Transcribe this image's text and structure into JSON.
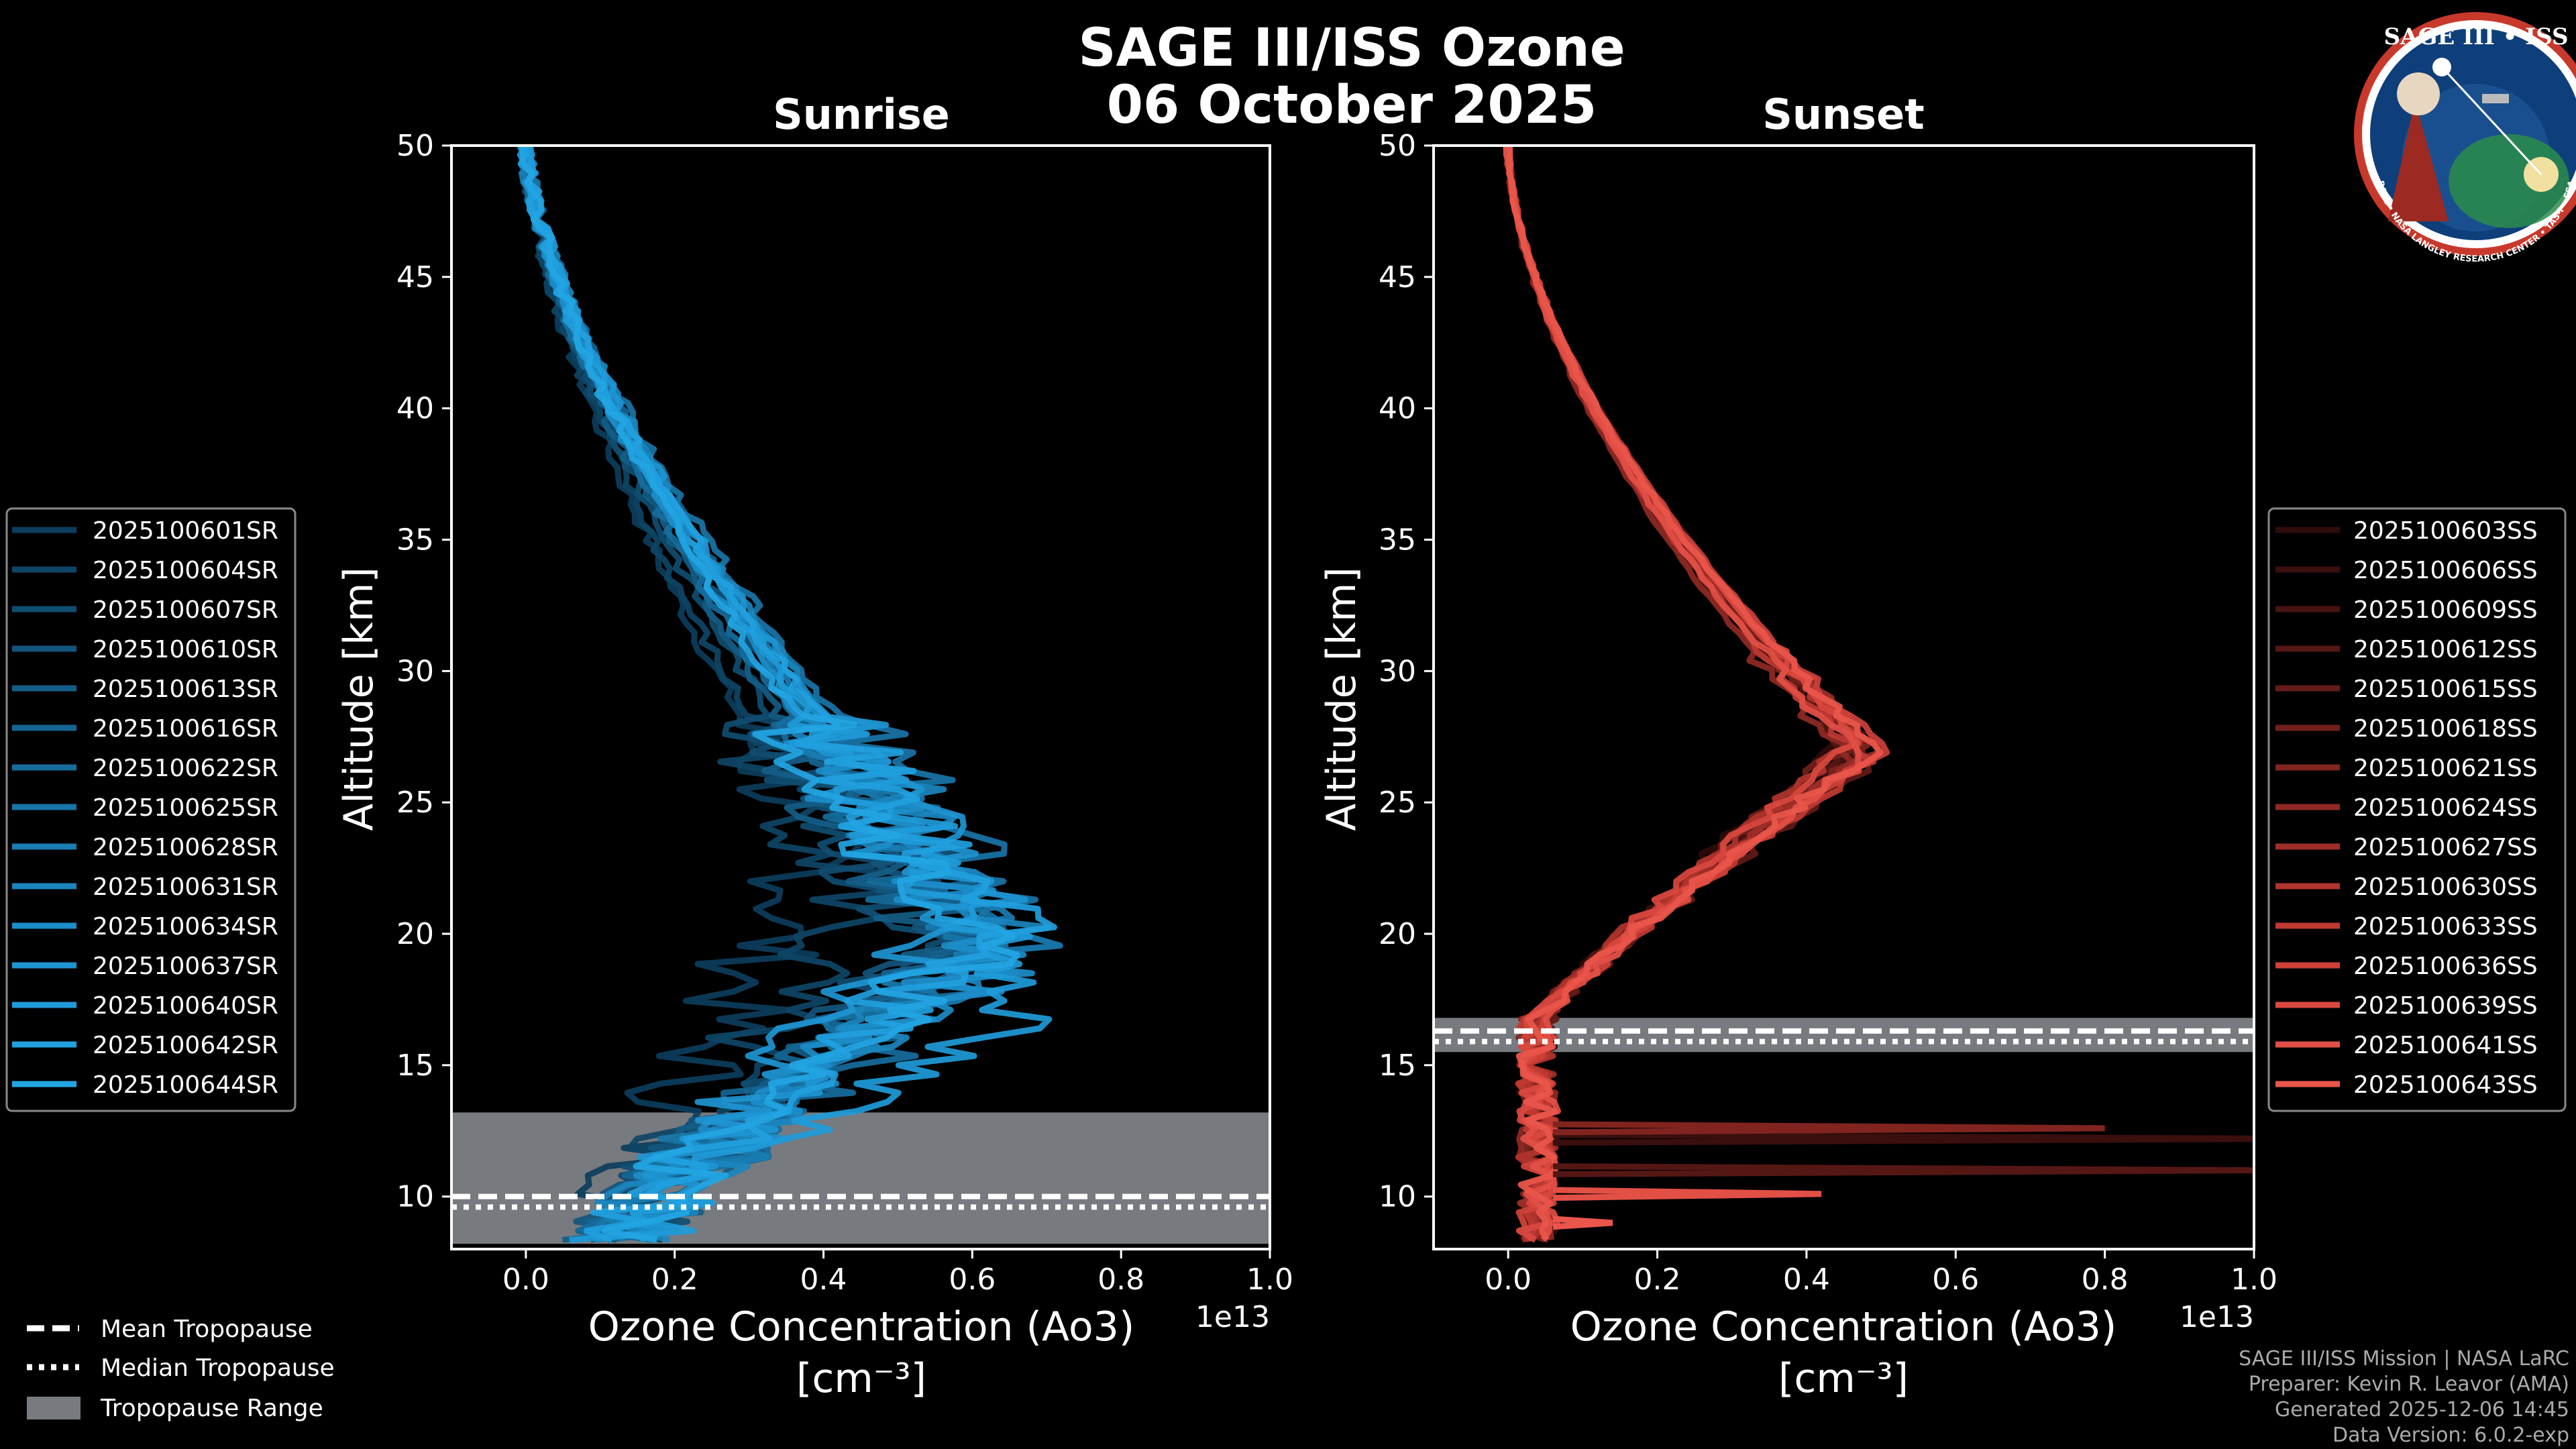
{
  "figure": {
    "title_line1": "SAGE III/ISS Ozone",
    "title_line2": "06 October 2025",
    "multiplier_label": "1e13"
  },
  "logo": {
    "text_top": "SAGE III • ISS",
    "text_bottom": "BALL • NASA LANGLEY RESEARCH CENTER • TAS-I • ESA"
  },
  "footer": {
    "line1": "SAGE III/ISS Mission | NASA LaRC",
    "line2": "Preparer: Kevin R. Leavor (AMA)",
    "line3": "Generated 2025-12-06 14:45",
    "line4": "Data Version: 6.0.2-exp"
  },
  "tropo_legend": {
    "mean": "Mean Tropopause",
    "median": "Median Tropopause",
    "range": "Tropopause Range"
  },
  "colors": {
    "background": "#000000",
    "sunrise": "#1f8fcf",
    "sunset": "#e8534a",
    "tropo_range": "#777a7e"
  },
  "chart_data": [
    {
      "type": "line",
      "title": "Sunrise",
      "xlabel": "Ozone Concentration (Ao3)",
      "xlabel_units": "[cm⁻³]",
      "ylabel": "Altitude [km]",
      "x_multiplier": "1e13",
      "xlim": [
        -0.1,
        1.0
      ],
      "ylim": [
        8,
        50
      ],
      "xticks": [
        "0.0",
        "0.2",
        "0.4",
        "0.6",
        "0.8",
        "1.0"
      ],
      "xtick_values": [
        0.0,
        0.2,
        0.4,
        0.6,
        0.8,
        1.0
      ],
      "yticks": [
        "10",
        "15",
        "20",
        "25",
        "30",
        "35",
        "40",
        "45",
        "50"
      ],
      "ytick_values": [
        10,
        15,
        20,
        25,
        30,
        35,
        40,
        45,
        50
      ],
      "tropopause": {
        "mean": 10.0,
        "median": 9.6,
        "range": [
          8.2,
          13.2
        ]
      },
      "series": [
        {
          "name": "2025100601SR",
          "color": "#0c3d5c",
          "peak_alt": 23.0,
          "peak_val": 0.4,
          "offset": 0.0
        },
        {
          "name": "2025100604SR",
          "color": "#0e4566",
          "peak_alt": 21.5,
          "peak_val": 0.45,
          "offset": 1.0
        },
        {
          "name": "2025100607SR",
          "color": "#104d71",
          "peak_alt": 19.5,
          "peak_val": 0.55,
          "offset": 2.0
        },
        {
          "name": "2025100610SR",
          "color": "#12557c",
          "peak_alt": 20.0,
          "peak_val": 0.6,
          "offset": 3.0
        },
        {
          "name": "2025100613SR",
          "color": "#135d87",
          "peak_alt": 19.0,
          "peak_val": 0.58,
          "offset": 4.0
        },
        {
          "name": "2025100616SR",
          "color": "#156592",
          "peak_alt": 20.5,
          "peak_val": 0.63,
          "offset": 5.0
        },
        {
          "name": "2025100622SR",
          "color": "#166d9d",
          "peak_alt": 18.5,
          "peak_val": 0.62,
          "offset": 6.0
        },
        {
          "name": "2025100625SR",
          "color": "#1875a8",
          "peak_alt": 21.0,
          "peak_val": 0.65,
          "offset": 7.0
        },
        {
          "name": "2025100628SR",
          "color": "#197db3",
          "peak_alt": 19.5,
          "peak_val": 0.64,
          "offset": 8.0
        },
        {
          "name": "2025100631SR",
          "color": "#1b85be",
          "peak_alt": 20.0,
          "peak_val": 0.66,
          "offset": 9.0
        },
        {
          "name": "2025100634SR",
          "color": "#1c8dc9",
          "peak_alt": 19.0,
          "peak_val": 0.63,
          "offset": 10.0
        },
        {
          "name": "2025100637SR",
          "color": "#1e95d2",
          "peak_alt": 21.0,
          "peak_val": 0.62,
          "offset": 11.0
        },
        {
          "name": "2025100640SR",
          "color": "#1f9bd9",
          "peak_alt": 17.5,
          "peak_val": 0.7,
          "offset": 12.0
        },
        {
          "name": "2025100642SR",
          "color": "#21a0de",
          "peak_alt": 20.0,
          "peak_val": 0.64,
          "offset": 13.0
        },
        {
          "name": "2025100644SR",
          "color": "#23a5e3",
          "peak_alt": 19.5,
          "peak_val": 0.61,
          "offset": 14.0
        }
      ]
    },
    {
      "type": "line",
      "title": "Sunset",
      "xlabel": "Ozone Concentration (Ao3)",
      "xlabel_units": "[cm⁻³]",
      "ylabel": "Altitude [km]",
      "x_multiplier": "1e13",
      "xlim": [
        -0.1,
        1.0
      ],
      "ylim": [
        8,
        50
      ],
      "xticks": [
        "0.0",
        "0.2",
        "0.4",
        "0.6",
        "0.8",
        "1.0"
      ],
      "xtick_values": [
        0.0,
        0.2,
        0.4,
        0.6,
        0.8,
        1.0
      ],
      "yticks": [
        "10",
        "15",
        "20",
        "25",
        "30",
        "35",
        "40",
        "45",
        "50"
      ],
      "ytick_values": [
        10,
        15,
        20,
        25,
        30,
        35,
        40,
        45,
        50
      ],
      "tropopause": {
        "mean": 16.3,
        "median": 15.9,
        "range": [
          15.5,
          16.8
        ]
      },
      "series": [
        {
          "name": "2025100603SS",
          "color": "#2e0c0b",
          "peak_alt": 27.5,
          "peak_val": 0.46,
          "offset": 0.0
        },
        {
          "name": "2025100606SS",
          "color": "#3a0f0e",
          "peak_alt": 27.0,
          "peak_val": 0.47,
          "offset": 1.0
        },
        {
          "name": "2025100609SS",
          "color": "#471311",
          "peak_alt": 27.5,
          "peak_val": 0.48,
          "offset": 2.0
        },
        {
          "name": "2025100612SS",
          "color": "#551714",
          "peak_alt": 27.0,
          "peak_val": 0.46,
          "offset": 3.0
        },
        {
          "name": "2025100615SS",
          "color": "#631b18",
          "peak_alt": 26.5,
          "peak_val": 0.49,
          "offset": 4.0
        },
        {
          "name": "2025100618SS",
          "color": "#721f1b",
          "peak_alt": 27.5,
          "peak_val": 0.47,
          "offset": 5.0
        },
        {
          "name": "2025100621SS",
          "color": "#81241f",
          "peak_alt": 27.0,
          "peak_val": 0.48,
          "offset": 6.0
        },
        {
          "name": "2025100624SS",
          "color": "#902924",
          "peak_alt": 26.5,
          "peak_val": 0.46,
          "offset": 7.0
        },
        {
          "name": "2025100627SS",
          "color": "#a02e28",
          "peak_alt": 27.0,
          "peak_val": 0.49,
          "offset": 8.0
        },
        {
          "name": "2025100630SS",
          "color": "#b0342d",
          "peak_alt": 27.5,
          "peak_val": 0.47,
          "offset": 9.0
        },
        {
          "name": "2025100633SS",
          "color": "#bf3a33",
          "peak_alt": 26.5,
          "peak_val": 0.48,
          "offset": 10.0
        },
        {
          "name": "2025100636SS",
          "color": "#cd4139",
          "peak_alt": 27.0,
          "peak_val": 0.5,
          "offset": 11.0
        },
        {
          "name": "2025100639SS",
          "color": "#d9483f",
          "peak_alt": 27.5,
          "peak_val": 0.47,
          "offset": 12.0
        },
        {
          "name": "2025100641SS",
          "color": "#e24f45",
          "peak_alt": 26.5,
          "peak_val": 0.48,
          "offset": 13.0
        },
        {
          "name": "2025100643SS",
          "color": "#ea564b",
          "peak_alt": 27.0,
          "peak_val": 0.49,
          "offset": 14.0
        }
      ]
    }
  ]
}
